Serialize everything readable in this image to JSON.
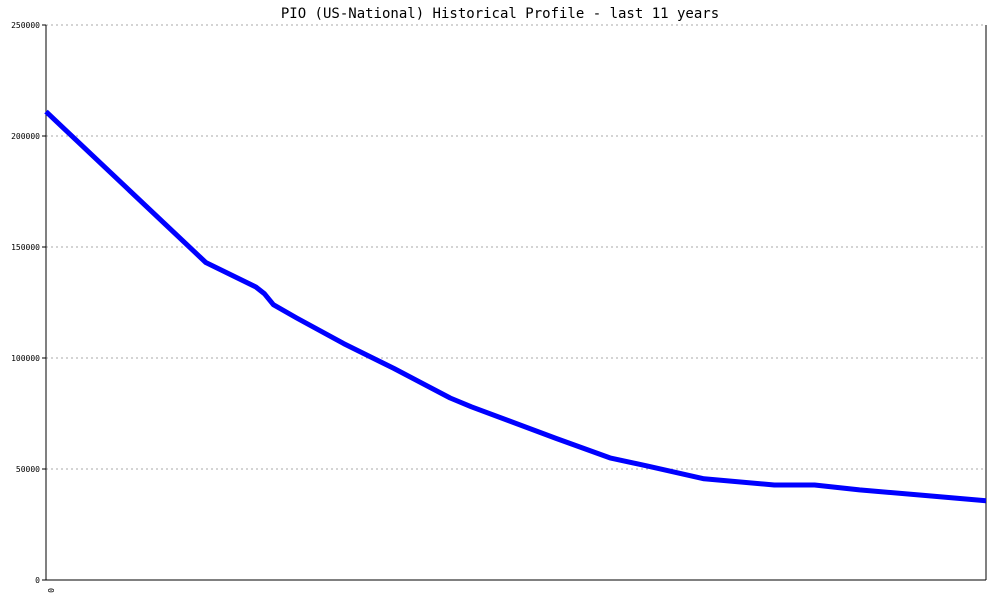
{
  "chart_data": {
    "type": "line",
    "title": "PIO (US-National) Historical Profile - last 11 years",
    "xlabel": "",
    "ylabel": "",
    "x_tick_labels": [
      "0"
    ],
    "y_ticks": [
      0,
      50000,
      100000,
      150000,
      200000,
      250000
    ],
    "y_tick_labels": [
      "0",
      "50000",
      "100000",
      "150000",
      "200000",
      "250000"
    ],
    "ylim": [
      0,
      250000
    ],
    "xlim": [
      0,
      1
    ],
    "grid": true,
    "legend": "none",
    "series": [
      {
        "color": "#0000ff",
        "x": [
          0.0,
          0.085,
          0.17,
          0.2233,
          0.2322,
          0.2419,
          0.2667,
          0.3167,
          0.37,
          0.43,
          0.4525,
          0.5425,
          0.6,
          0.64,
          0.7,
          0.7748,
          0.8177,
          0.8654,
          0.9325,
          1.0
        ],
        "y": [
          211000,
          177000,
          143000,
          132000,
          129000,
          124000,
          118000,
          106500,
          95300,
          82000,
          78000,
          63800,
          55000,
          51300,
          45600,
          42800,
          42800,
          40600,
          38200,
          35700
        ]
      }
    ],
    "colors": {
      "line": "#0000ff",
      "grid": "#aaaaaa",
      "axis": "#000000",
      "background": "#ffffff"
    }
  }
}
